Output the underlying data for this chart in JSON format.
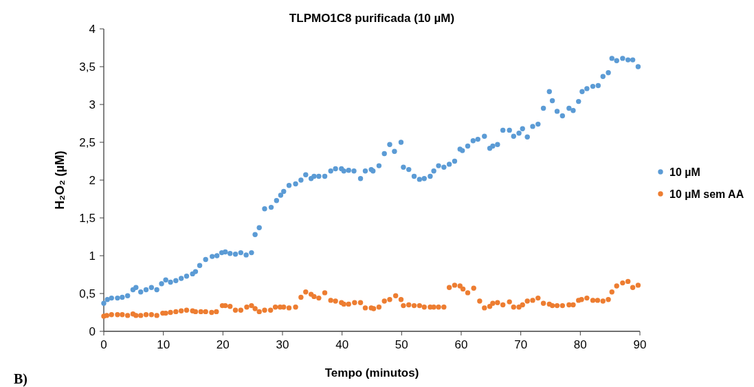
{
  "chart_data": {
    "type": "scatter",
    "title": "TLPMO1C8 purificada (10 µM)",
    "xlabel": "Tempo (minutos)",
    "ylabel": "H₂O₂ (µM)",
    "annotations": [
      "B)"
    ],
    "xlim": [
      0,
      90
    ],
    "xticks": [
      0,
      10,
      20,
      30,
      40,
      50,
      60,
      70,
      80,
      90
    ],
    "ylim": [
      0,
      4
    ],
    "yticks": [
      0,
      {
        "value": 0.5,
        "label": "0,5"
      },
      1,
      {
        "value": 1.5,
        "label": "1,5"
      },
      2,
      {
        "value": 2.5,
        "label": "2,5"
      },
      3,
      {
        "value": 3.5,
        "label": "3,5"
      },
      4
    ],
    "grid": false,
    "legend": "right",
    "marker": "circle",
    "series": [
      {
        "name": "10 µM",
        "color": "#5b9bd5",
        "x": [
          0,
          0.6,
          1.3,
          2.3,
          3.1,
          4,
          4.9,
          5.4,
          6.2,
          7.1,
          8,
          8.9,
          9.7,
          10.4,
          11.2,
          12.1,
          13,
          13.9,
          14.9,
          15.4,
          16.1,
          17.1,
          18.2,
          19,
          19.8,
          20.4,
          21.2,
          22.1,
          23,
          23.9,
          24.8,
          25.4,
          26.1,
          27,
          28.1,
          29,
          29.7,
          30.2,
          31.1,
          32.2,
          33.1,
          33.9,
          34.8,
          35.3,
          36.1,
          37.1,
          38.1,
          38.9,
          39.9,
          40.3,
          41.1,
          42,
          43.1,
          43.9,
          44.9,
          45.2,
          46.2,
          47.1,
          48,
          48.8,
          49.9,
          50.3,
          51.2,
          52.1,
          53,
          53.8,
          54.8,
          55.4,
          56.2,
          57.1,
          58,
          58.9,
          59.8,
          60.2,
          61.1,
          62,
          62.8,
          63.9,
          64.8,
          65.3,
          66.1,
          67,
          68.1,
          68.8,
          69.7,
          70.3,
          71.1,
          72,
          72.9,
          73.8,
          74.8,
          75.3,
          76.1,
          77,
          78.1,
          78.8,
          79.7,
          80.3,
          81.1,
          82.1,
          83,
          83.8,
          84.7,
          85.3,
          86.1,
          87.1,
          88,
          88.8,
          89.7
        ],
        "values": [
          0.37,
          0.42,
          0.44,
          0.44,
          0.45,
          0.47,
          0.55,
          0.58,
          0.52,
          0.55,
          0.58,
          0.55,
          0.63,
          0.68,
          0.65,
          0.67,
          0.7,
          0.73,
          0.76,
          0.79,
          0.87,
          0.95,
          0.99,
          1.0,
          1.04,
          1.05,
          1.03,
          1.02,
          1.04,
          1.01,
          1.04,
          1.28,
          1.37,
          1.62,
          1.64,
          1.73,
          1.8,
          1.85,
          1.93,
          1.95,
          2.0,
          2.07,
          2.02,
          2.05,
          2.05,
          2.05,
          2.12,
          2.15,
          2.15,
          2.12,
          2.13,
          2.12,
          2.02,
          2.12,
          2.14,
          2.12,
          2.19,
          2.35,
          2.47,
          2.38,
          2.5,
          2.17,
          2.14,
          2.05,
          2.01,
          2.02,
          2.05,
          2.12,
          2.19,
          2.17,
          2.21,
          2.25,
          2.41,
          2.39,
          2.45,
          2.52,
          2.54,
          2.58,
          2.42,
          2.45,
          2.47,
          2.66,
          2.66,
          2.58,
          2.62,
          2.68,
          2.57,
          2.71,
          2.74,
          2.95,
          3.17,
          3.05,
          2.91,
          2.85,
          2.95,
          2.92,
          3.04,
          3.17,
          3.21,
          3.24,
          3.25,
          3.37,
          3.42,
          3.61,
          3.58,
          3.61,
          3.59,
          3.59,
          3.5
        ]
      },
      {
        "name": "10 µM sem AA",
        "color": "#ed7d31",
        "x": [
          0,
          0.5,
          1.3,
          2.3,
          3.1,
          4,
          4.9,
          5.4,
          6.2,
          7.1,
          8,
          8.9,
          9.9,
          10.4,
          11.2,
          12.1,
          13,
          13.9,
          14.9,
          15.4,
          16.3,
          17.1,
          18.1,
          18.9,
          19.9,
          20.4,
          21.2,
          22.1,
          23,
          24,
          24.8,
          25.4,
          26.1,
          27,
          28,
          28.8,
          29.6,
          30.2,
          31.1,
          32.2,
          33.1,
          33.9,
          34.8,
          35.3,
          36.1,
          37.1,
          38.1,
          38.9,
          39.9,
          40.3,
          41.1,
          42.1,
          43.1,
          43.9,
          44.9,
          45.3,
          46.2,
          47.1,
          48,
          49,
          49.9,
          50.3,
          51.2,
          52.1,
          53,
          53.8,
          54.8,
          55.4,
          56.2,
          57.1,
          58,
          58.9,
          59.8,
          60.3,
          61.1,
          62.1,
          63.1,
          63.9,
          64.8,
          65.3,
          66.1,
          67,
          68.1,
          68.8,
          69.7,
          70.3,
          71.1,
          72,
          72.9,
          73.8,
          74.8,
          75.3,
          76.1,
          77,
          78.1,
          78.8,
          79.7,
          80.2,
          81.1,
          82.1,
          82.9,
          83.8,
          84.7,
          85.3,
          86.1,
          87.1,
          88,
          88.8,
          89.7
        ],
        "values": [
          0.2,
          0.21,
          0.22,
          0.22,
          0.22,
          0.21,
          0.23,
          0.21,
          0.21,
          0.22,
          0.22,
          0.21,
          0.24,
          0.24,
          0.25,
          0.26,
          0.27,
          0.28,
          0.27,
          0.26,
          0.26,
          0.26,
          0.25,
          0.26,
          0.34,
          0.34,
          0.33,
          0.28,
          0.28,
          0.32,
          0.34,
          0.3,
          0.26,
          0.28,
          0.28,
          0.32,
          0.32,
          0.32,
          0.31,
          0.32,
          0.45,
          0.52,
          0.49,
          0.46,
          0.44,
          0.51,
          0.41,
          0.4,
          0.38,
          0.36,
          0.36,
          0.38,
          0.38,
          0.31,
          0.31,
          0.3,
          0.32,
          0.4,
          0.42,
          0.47,
          0.42,
          0.34,
          0.35,
          0.34,
          0.34,
          0.32,
          0.32,
          0.32,
          0.32,
          0.32,
          0.58,
          0.61,
          0.6,
          0.56,
          0.51,
          0.57,
          0.4,
          0.31,
          0.33,
          0.37,
          0.38,
          0.35,
          0.39,
          0.32,
          0.32,
          0.35,
          0.4,
          0.41,
          0.44,
          0.37,
          0.36,
          0.34,
          0.34,
          0.34,
          0.35,
          0.35,
          0.41,
          0.42,
          0.44,
          0.41,
          0.41,
          0.4,
          0.42,
          0.52,
          0.6,
          0.64,
          0.66,
          0.58,
          0.61
        ]
      }
    ]
  }
}
